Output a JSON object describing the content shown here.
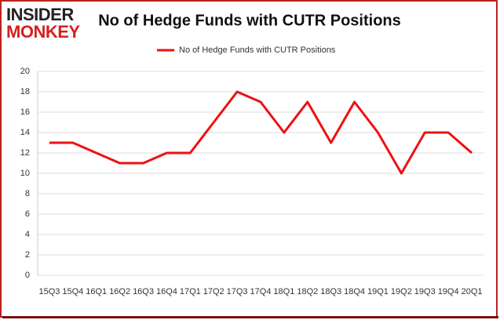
{
  "chart_data": {
    "type": "line",
    "title": "No of Hedge Funds with CUTR Positions",
    "logo_top": "INSIDER",
    "logo_bottom": "MONKEY",
    "categories": [
      "15Q3",
      "15Q4",
      "16Q1",
      "16Q2",
      "16Q3",
      "16Q4",
      "17Q1",
      "17Q2",
      "17Q3",
      "17Q4",
      "18Q1",
      "18Q2",
      "18Q3",
      "18Q4",
      "19Q1",
      "19Q2",
      "19Q3",
      "19Q4",
      "20Q1"
    ],
    "series": [
      {
        "name": "No of Hedge Funds with CUTR Positions",
        "color": "#ee1111",
        "values": [
          13,
          13,
          12,
          11,
          11,
          12,
          12,
          15,
          18,
          17,
          14,
          17,
          13,
          17,
          14,
          10,
          14,
          14,
          12
        ]
      }
    ],
    "ylim": [
      0,
      20
    ],
    "yticks": [
      0,
      2,
      4,
      6,
      8,
      10,
      12,
      14,
      16,
      18,
      20
    ],
    "grid": true,
    "legend": "top"
  }
}
